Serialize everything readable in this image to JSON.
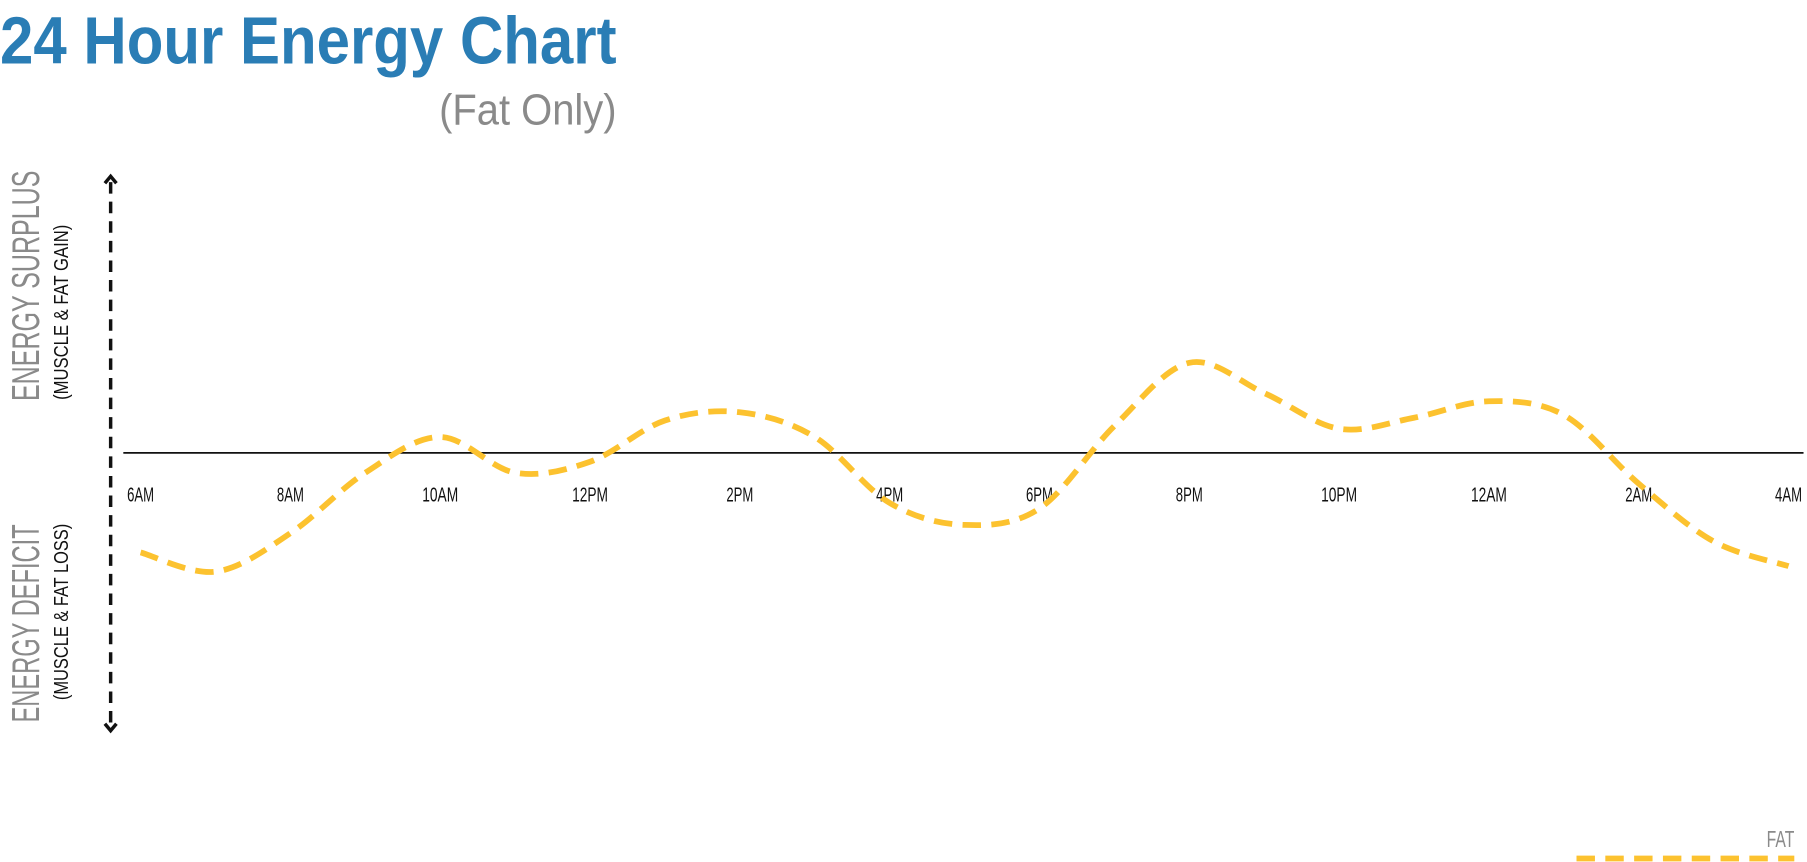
{
  "chart_data": {
    "type": "line",
    "title": "24 Hour Energy Chart",
    "subtitle": "(Fat Only)",
    "y_label_top": "ENERGY SURPLUS",
    "y_sublabel_top": "(MUSCLE & FAT GAIN)",
    "y_label_bottom": "ENERGY DEFICIT",
    "y_sublabel_bottom": "(MUSCLE & FAT LOSS)",
    "categories": [
      "6AM",
      null,
      "8AM",
      null,
      "10AM",
      null,
      "12PM",
      null,
      "2PM",
      null,
      "4PM",
      null,
      "6PM",
      null,
      "8PM",
      null,
      "10PM",
      null,
      "12AM",
      null,
      "2AM",
      null,
      "4AM"
    ],
    "series": [
      {
        "name": "FAT",
        "color": "#fcc22f",
        "values": [
          -3.6,
          -4.3,
          -2.9,
          -0.7,
          0.6,
          -0.7,
          -0.3,
          1.2,
          1.5,
          0.6,
          -1.8,
          -2.6,
          -2.0,
          1.0,
          3.3,
          2.2,
          0.9,
          1.3,
          1.9,
          1.4,
          -1.1,
          -3.2,
          -4.1
        ]
      }
    ],
    "ylim": [
      -10,
      10
    ],
    "legend": "bottom-right"
  }
}
